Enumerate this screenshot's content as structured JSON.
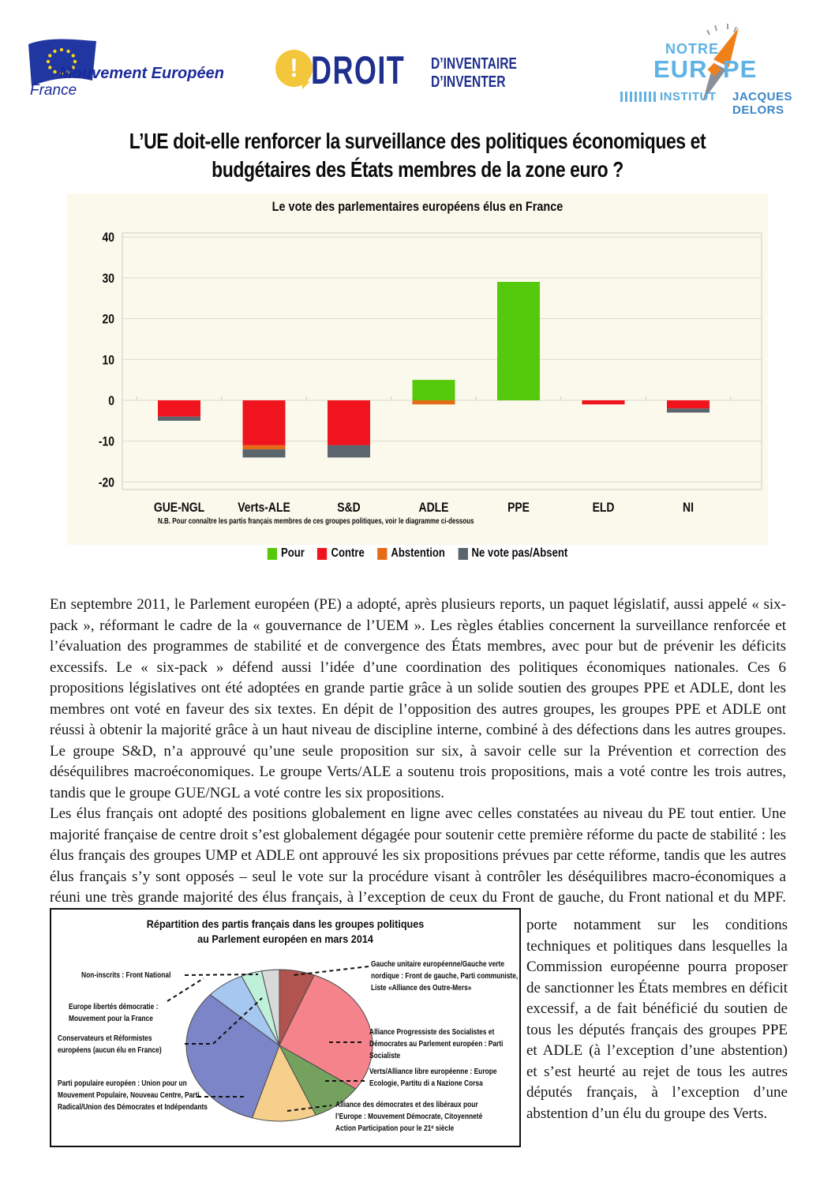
{
  "header": {
    "me_logo": {
      "name": "Mouvement Européen",
      "country": "France"
    },
    "droit_logo": {
      "bang": "!",
      "word": "DROIT",
      "line1": "D’INVENTAIRE",
      "line2": "D’INVENTER"
    },
    "ne_logo": {
      "notre": "NOTRE",
      "eur": "EUR",
      "pe": "PE",
      "institut": "INSTITUT",
      "jacques_delors": "JACQUES DELORS"
    }
  },
  "title": {
    "line1": "L’UE doit-elle renforcer la surveillance des politiques économiques et",
    "line2": "budgétaires des États membres de la zone euro ?"
  },
  "chart_data": [
    {
      "type": "bar",
      "title": "Le vote des parlementaires européens élus en France",
      "categories": [
        "GUE-NGL",
        "Verts-ALE",
        "S&D",
        "ADLE",
        "PPE",
        "ELD",
        "NI"
      ],
      "series": [
        {
          "name": "Pour",
          "color": "#55c90c",
          "values": [
            0,
            0,
            0,
            5,
            29,
            0,
            0
          ]
        },
        {
          "name": "Contre",
          "color": "#f0141e",
          "values": [
            -4,
            -11,
            -11,
            0,
            0,
            -1,
            -2
          ]
        },
        {
          "name": "Abstention",
          "color": "#e66b17",
          "values": [
            0,
            -1,
            0,
            -1,
            0,
            0,
            0
          ]
        },
        {
          "name": "Ne vote pas/Absent",
          "color": "#5b656d",
          "values": [
            -1,
            -2,
            -3,
            0,
            0,
            0,
            -1
          ]
        }
      ],
      "ylim": [
        -20,
        40
      ],
      "ytick_step": 10,
      "yticks": [
        40,
        30,
        20,
        10,
        0,
        -10,
        -20
      ],
      "grid": true,
      "stacked": true,
      "legend_position": "bottom",
      "background": "#fbf9ec",
      "note": "N.B. Pour connaître les partis français membres de ces groupes politiques, voir le diagramme ci-dessous"
    },
    {
      "type": "pie",
      "title_line1": "Répartition des partis français dans les groupes politiques",
      "title_line2": "au Parlement européen en mars 2014",
      "start_at": "12 o'clock, clockwise",
      "slices": [
        {
          "label": "Gauche unitaire européenne/Gauche verte nordique : Front de gauche, Parti communiste, Liste «Alliance des Outre-Mers»",
          "color": "#b1544f",
          "angle_deg": 22
        },
        {
          "label": "Alliance Progressiste des Socialistes et Démocrates au Parlement européen : Parti Socialiste",
          "color": "#f4838b",
          "angle_deg": 103
        },
        {
          "label": "Verts/Alliance libre européenne : Europe Ecologie, Partitu di a Nazione Corsa",
          "color": "#74a25e",
          "angle_deg": 32
        },
        {
          "label": "Alliance des démocrates et des libéraux pour l’Europe : Mouvement Démocrate, Citoyenneté Action Participation pour le 21ᵉ siècle",
          "color": "#f6cf8d",
          "angle_deg": 40
        },
        {
          "label": "Parti populaire européen : Union pour un Mouvement Populaire, Nouveau Centre, Parti Radical/Union des Démocrates et Indépendants",
          "color": "#7b85c7",
          "angle_deg": 115
        },
        {
          "label": "Conservateurs et Réformistes européens (aucun élu en France)",
          "color": "#a6c7f0",
          "angle_deg": 24
        },
        {
          "label": "Europe libertés démocratie : Mouvement pour la France",
          "color": "#bff0da",
          "angle_deg": 13
        },
        {
          "label": "Non-inscrits : Front National",
          "color": "#d9d9d9",
          "angle_deg": 11
        }
      ]
    }
  ],
  "body": {
    "para1": "En septembre 2011, le Parlement européen (PE) a adopté, après plusieurs reports, un paquet législatif, aussi appelé « six-pack », réformant le cadre de la « gouvernance de l’UEM ». Les règles établies concernent la surveillance renforcée et l’évaluation des programmes de stabilité et de convergence des États membres, avec pour but de prévenir les déficits excessifs. Le « six-pack » défend aussi l’idée d’une coordination des politiques économiques nationales. Ces 6 propositions législatives ont été adoptées en grande partie grâce à un solide soutien des groupes PPE et ADLE, dont les membres ont voté en faveur des six textes. En dépit de l’opposition des autres groupes, les groupes PPE et ADLE ont réussi à obtenir la majorité grâce à un haut niveau de discipline interne, combiné à des défections dans les autres groupes. Le groupe S&D, n’a approuvé qu’une seule proposition sur six, à savoir celle sur la Prévention et correction des déséquilibres macroéconomiques. Le groupe Verts/ALE a soutenu trois propositions, mais a voté contre les trois autres, tandis que le groupe GUE/NGL a voté contre les six propositions.",
    "para2a": "Les élus français ont adopté des positions globalement en ligne avec celles constatées au niveau du PE tout entier. Une majorité française de centre droit s’est globalement dégagée pour soutenir cette première réforme du pacte de stabilité : les élus français des groupes UMP et ADLE ont approuvé les six propositions prévues par cette réforme, tandis que les autres élus français s’y sont opposés – seul le vote sur la procédure visant à contrôler les déséquilibres macro-économiques a réuni une très grande majorité des élus français, à l’exception de ceux du Front de gauche, du Front national et du MPF. Le vote qui",
    "para2b": "porte notamment sur les conditions techniques et politiques dans lesquelles la Commission européenne pourra proposer de sanctionner les États membres en déficit excessif, a de fait bénéficié du soutien de tous les députés français des groupes PPE et ADLE (à l’exception d’une abstention) et s’est heurté au rejet de tous les autres députés français, à l’exception d’une abstention d’un élu du groupe des Verts."
  },
  "colors": {
    "logo_blue": "#1b2a9b",
    "droit_blue": "#1f2f8e",
    "ne_light_blue": "#5fb2e5",
    "ne_orange": "#f08019",
    "panel_cream": "#fbf9ec",
    "grid_gray": "#dcdacd",
    "bar_green": "#55c90c",
    "bar_red": "#f0141e",
    "bar_orange": "#e66b17",
    "bar_gray": "#5b656d"
  }
}
